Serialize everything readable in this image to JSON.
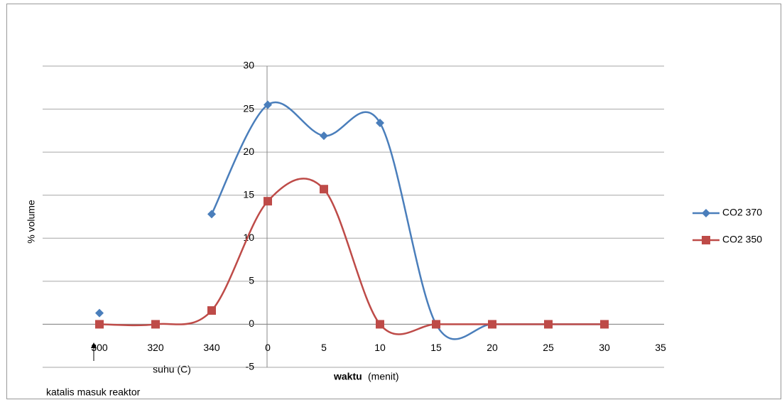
{
  "chart_data": {
    "type": "line",
    "y_label": "% volume",
    "x_label_left": "suhu (C)",
    "x_label_bold": "waktu",
    "x_label_unit": "(menit)",
    "annotation": "katalis masuk reaktor",
    "categories": [
      "300",
      "320",
      "340",
      "0",
      "5",
      "10",
      "15",
      "20",
      "25",
      "30",
      "35"
    ],
    "series": [
      {
        "name": "CO2 370",
        "color": "#4a7ebb",
        "marker": "diamond",
        "values": [
          1.3,
          null,
          12.8,
          25.5,
          21.9,
          23.4,
          0,
          0,
          0,
          0,
          null
        ]
      },
      {
        "name": "CO2 350",
        "color": "#be4b48",
        "marker": "square",
        "values": [
          0,
          0,
          1.6,
          14.3,
          15.7,
          0,
          0,
          0,
          0,
          0,
          null
        ]
      }
    ],
    "ylim": [
      -5,
      30
    ],
    "yticks": [
      -5,
      0,
      5,
      10,
      15,
      20,
      25,
      30
    ],
    "grid": true,
    "smooth": true,
    "legend": "right"
  }
}
